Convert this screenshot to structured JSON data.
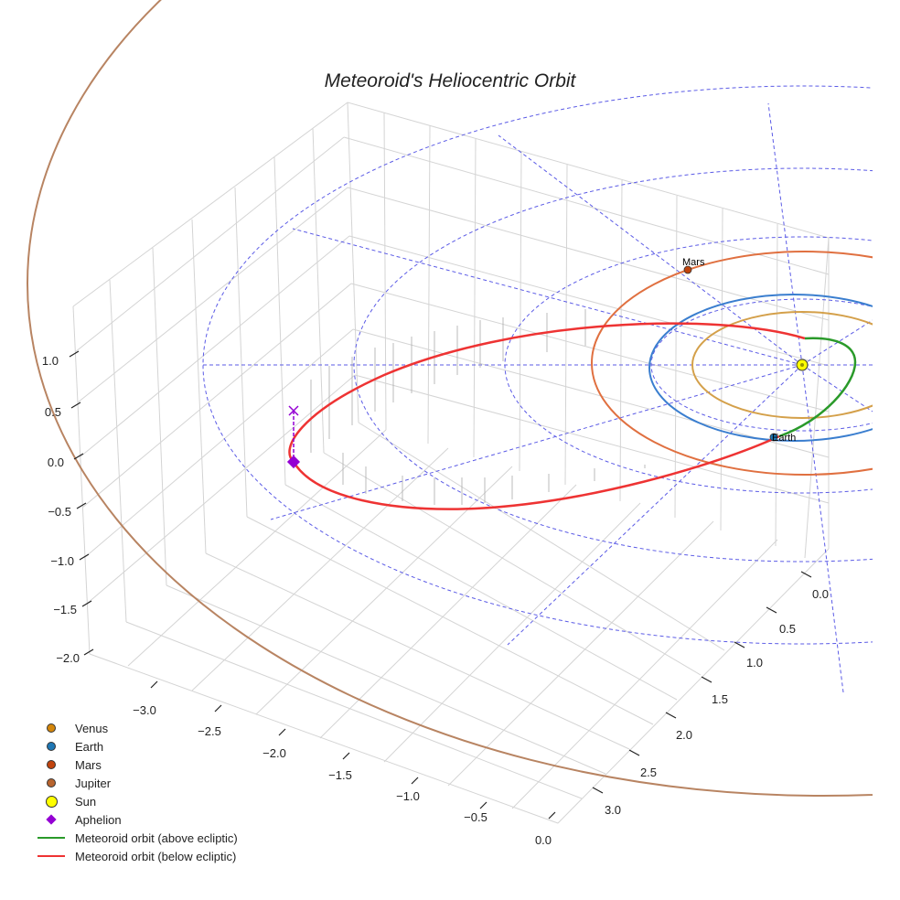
{
  "chart_data": {
    "type": "3d-orbit",
    "title": "Meteoroid's Heliocentric Orbit",
    "z_ticks": [
      "1.0",
      "0.5",
      "0.0",
      "−0.5",
      "−1.0",
      "−1.5",
      "−2.0"
    ],
    "x_ticks": [
      "−3.0",
      "−2.5",
      "−2.0",
      "−1.5",
      "−1.0",
      "−0.5",
      "0.0"
    ],
    "y_ticks": [
      "0.0",
      "0.5",
      "1.0",
      "1.5",
      "2.0",
      "2.5",
      "3.0"
    ],
    "planets": [
      {
        "name": "Venus",
        "semi_major_axis_au": 0.72,
        "color": "#d4a04a"
      },
      {
        "name": "Earth",
        "semi_major_axis_au": 1.0,
        "color": "#3a7ecf"
      },
      {
        "name": "Mars",
        "semi_major_axis_au": 1.52,
        "color": "#e07040"
      },
      {
        "name": "Jupiter",
        "semi_major_axis_au": 5.2,
        "color": "#b88462"
      }
    ],
    "point_labels": {
      "mars": "Mars",
      "earth": "Earth"
    },
    "meteoroid": {
      "aphelion_au": 3.4,
      "perihelion_au": 0.33
    },
    "legend": [
      {
        "label": "Venus",
        "kind": "dot",
        "color": "#d4860b"
      },
      {
        "label": "Earth",
        "kind": "dot",
        "color": "#1f77b4"
      },
      {
        "label": "Mars",
        "kind": "dot",
        "color": "#c1440e"
      },
      {
        "label": "Jupiter",
        "kind": "dot",
        "color": "#b8642e"
      },
      {
        "label": "Sun",
        "kind": "sun",
        "color": "#ffff00"
      },
      {
        "label": "Aphelion",
        "kind": "diamond",
        "color": "#9400d3"
      },
      {
        "label": "Meteoroid orbit (above ecliptic)",
        "kind": "line",
        "color": "#2a9a2a"
      },
      {
        "label": "Meteoroid orbit (below ecliptic)",
        "kind": "line",
        "color": "#ee3333"
      }
    ]
  }
}
